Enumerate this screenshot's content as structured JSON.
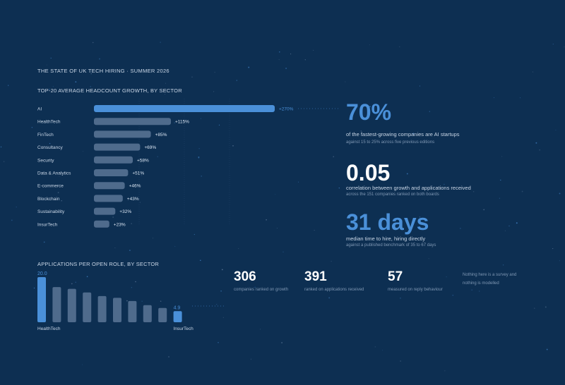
{
  "header": {
    "title": "THE STATE OF UK TECH HIRING · SUMMER 2026"
  },
  "stats": [
    {
      "value": "70%",
      "desc": "of the fastest-growing companies are AI startups",
      "sub": "against 15 to 25% across five previous editions"
    },
    {
      "value": "0.05",
      "desc": "correlation between growth and applications received",
      "sub": "across the 151 companies ranked on both boards"
    },
    {
      "value": "31 days",
      "desc": "median time to hire, hiring directly",
      "sub": "against a published benchmark of 35 to 67 days"
    }
  ],
  "counts": [
    {
      "value": "306",
      "label": "companies ranked on growth"
    },
    {
      "value": "391",
      "label": "ranked on applications received"
    },
    {
      "value": "57",
      "label": "measured on reply behaviour"
    }
  ],
  "note": "Nothing here is a survey and nothing is modelled",
  "colors": {
    "accent": "#4a90d9",
    "bar": "#4f6b8c",
    "background": "#0d2f52"
  },
  "chart_data": [
    {
      "type": "bar",
      "orientation": "horizontal",
      "title": "TOP-20 AVERAGE HEADCOUNT GROWTH, BY SECTOR",
      "categories": [
        "AI",
        "HealthTech",
        "FinTech",
        "Consultancy",
        "Security",
        "Data & Analytics",
        "E-commerce",
        "Blockchain",
        "Sustainability",
        "InsurTech"
      ],
      "values": [
        270,
        115,
        85,
        69,
        58,
        51,
        46,
        43,
        32,
        23
      ],
      "labels": [
        "+270%",
        "+115%",
        "+85%",
        "+69%",
        "+58%",
        "+51%",
        "+46%",
        "+43%",
        "+32%",
        "+23%"
      ],
      "highlight_index": 0,
      "xlim": [
        0,
        270
      ],
      "grid": true
    },
    {
      "type": "bar",
      "orientation": "vertical",
      "title": "APPLICATIONS PER OPEN ROLE, BY SECTOR",
      "values": [
        20.0,
        15.6,
        14.8,
        13.2,
        11.6,
        10.8,
        9.4,
        7.6,
        6.3,
        4.9
      ],
      "value_labels": [
        "20.0",
        "",
        "",
        "",
        "",
        "",
        "",
        "",
        "",
        "4.9"
      ],
      "category_labels": [
        "HealthTech",
        "",
        "",
        "",
        "",
        "",
        "",
        "",
        "",
        "InsurTech"
      ],
      "highlight_indices": [
        0,
        9
      ],
      "ylim": [
        0,
        20
      ]
    }
  ]
}
